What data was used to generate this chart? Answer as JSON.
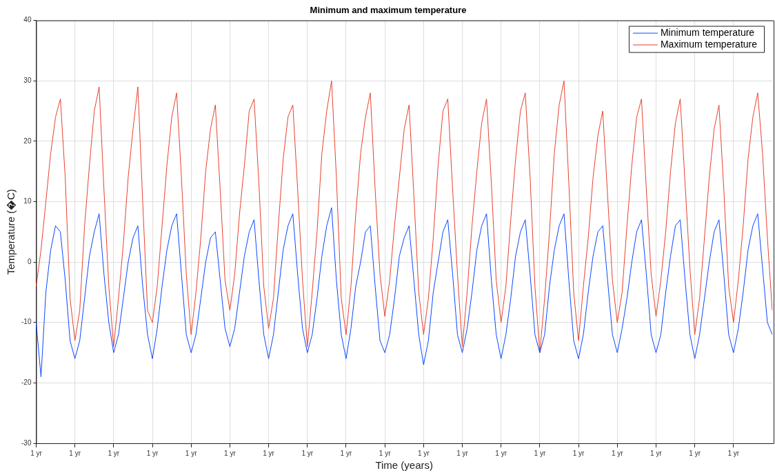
{
  "chart_data": {
    "type": "line",
    "title": "Minimum and maximum temperature",
    "xlabel": "Time (years)",
    "ylabel": "Temperature (�C)",
    "categories": [
      "1 yr",
      null,
      null,
      null,
      null,
      null,
      null,
      null,
      "1 yr",
      null,
      null,
      null,
      null,
      null,
      null,
      null,
      "1 yr",
      null,
      null,
      null,
      null,
      null,
      null,
      null,
      "1 yr",
      null,
      null,
      null,
      null,
      null,
      null,
      null,
      "1 yr",
      null,
      null,
      null,
      null,
      null,
      null,
      null,
      "1 yr",
      null,
      null,
      null,
      null,
      null,
      null,
      null,
      "1 yr",
      null,
      null,
      null,
      null,
      null,
      null,
      null,
      "1 yr",
      null,
      null,
      null,
      null,
      null,
      null,
      null,
      "1 yr",
      null,
      null,
      null,
      null,
      null,
      null,
      null,
      "1 yr",
      null,
      null,
      null,
      null,
      null,
      null,
      null,
      "1 yr",
      null,
      null,
      null,
      null,
      null,
      null,
      null,
      "1 yr",
      null,
      null,
      null,
      null,
      null,
      null,
      null,
      "1 yr",
      null,
      null,
      null,
      null,
      null,
      null,
      null,
      "1 yr",
      null,
      null,
      null,
      null,
      null,
      null,
      null,
      "1 yr",
      null,
      null,
      null,
      null,
      null,
      null,
      null,
      "1 yr",
      null,
      null,
      null,
      null,
      null,
      null,
      null,
      "1 yr",
      null,
      null,
      null,
      null,
      null,
      null,
      null,
      "1 yr",
      null,
      null,
      null,
      null,
      null,
      null,
      null,
      "1 yr",
      null,
      null,
      null,
      null,
      null,
      null,
      null,
      null
    ],
    "series": [
      {
        "name": "Minimum temperature",
        "color": "#0a47ff",
        "values": [
          -10,
          -19,
          -5,
          2,
          6,
          5,
          -3,
          -13,
          -16,
          -13,
          -6,
          1,
          5,
          8,
          -2,
          -10,
          -15,
          -12,
          -6,
          0,
          4,
          6,
          -4,
          -12,
          -16,
          -11,
          -4,
          2,
          6,
          8,
          -2,
          -12,
          -15,
          -12,
          -6,
          0,
          4,
          5,
          -3,
          -11,
          -14,
          -11,
          -5,
          1,
          5,
          7,
          -3,
          -12,
          -16,
          -12,
          -5,
          2,
          6,
          8,
          -2,
          -11,
          -15,
          -12,
          -6,
          1,
          6,
          9,
          -3,
          -12,
          -16,
          -11,
          -4,
          0,
          5,
          6,
          -4,
          -13,
          -15,
          -12,
          -6,
          1,
          4,
          6,
          -3,
          -12,
          -17,
          -13,
          -5,
          0,
          5,
          7,
          -2,
          -12,
          -15,
          -11,
          -5,
          2,
          6,
          8,
          -3,
          -12,
          -16,
          -12,
          -6,
          1,
          5,
          7,
          -2,
          -12,
          -15,
          -12,
          -4,
          2,
          6,
          8,
          -3,
          -13,
          -16,
          -12,
          -5,
          1,
          5,
          6,
          -3,
          -12,
          -15,
          -11,
          -6,
          0,
          5,
          7,
          -2,
          -12,
          -15,
          -12,
          -5,
          1,
          6,
          7,
          -3,
          -12,
          -16,
          -12,
          -6,
          0,
          5,
          7,
          -2,
          -12,
          -15,
          -11,
          -5,
          2,
          6,
          8,
          -1,
          -10,
          -12
        ]
      },
      {
        "name": "Maximum temperature",
        "color": "#e8412f",
        "values": [
          -4,
          2,
          10,
          18,
          24,
          27,
          14,
          -6,
          -13,
          -8,
          6,
          16,
          25,
          29,
          12,
          -4,
          -14,
          -6,
          3,
          14,
          22,
          29,
          10,
          -8,
          -10,
          -4,
          6,
          16,
          24,
          28,
          14,
          -2,
          -12,
          -5,
          4,
          15,
          22,
          26,
          12,
          -3,
          -8,
          -2,
          8,
          16,
          25,
          27,
          13,
          -4,
          -11,
          -6,
          6,
          17,
          24,
          26,
          12,
          -3,
          -14,
          -5,
          5,
          18,
          25,
          30,
          14,
          -6,
          -12,
          -4,
          8,
          18,
          24,
          28,
          12,
          -2,
          -9,
          -3,
          6,
          14,
          22,
          26,
          11,
          -5,
          -12,
          -6,
          4,
          16,
          25,
          27,
          12,
          -2,
          -14,
          -5,
          6,
          15,
          23,
          27,
          13,
          -3,
          -10,
          -4,
          7,
          17,
          25,
          28,
          14,
          -4,
          -15,
          -6,
          5,
          18,
          26,
          30,
          13,
          -5,
          -13,
          -4,
          4,
          14,
          21,
          25,
          11,
          -3,
          -10,
          -5,
          6,
          16,
          24,
          27,
          12,
          -2,
          -9,
          -3,
          5,
          15,
          23,
          27,
          13,
          -1,
          -12,
          -6,
          4,
          14,
          22,
          26,
          12,
          -4,
          -10,
          -3,
          6,
          17,
          24,
          28,
          18,
          4,
          -8
        ]
      }
    ],
    "ylim": [
      -30,
      40
    ],
    "yticks": [
      -30,
      -20,
      -10,
      0,
      10,
      20,
      30,
      40
    ],
    "grid": true,
    "legend": "top right",
    "marker": "none",
    "line_style": "solid"
  }
}
